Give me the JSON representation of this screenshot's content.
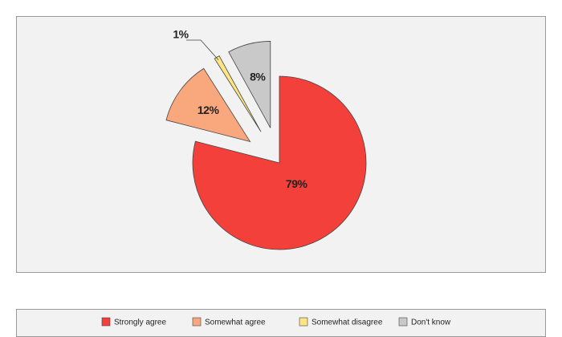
{
  "chart_data": {
    "type": "pie",
    "categories": [
      "Strongly agree",
      "Somewhat agree",
      "Somewhat disagree",
      "Don't know"
    ],
    "values": [
      79,
      12,
      1,
      8
    ],
    "value_labels": [
      "79%",
      "12%",
      "1%",
      "8%"
    ],
    "colors": [
      "#f4403a",
      "#f9a77c",
      "#fde583",
      "#c9c9c9"
    ],
    "legend": "bottom"
  }
}
